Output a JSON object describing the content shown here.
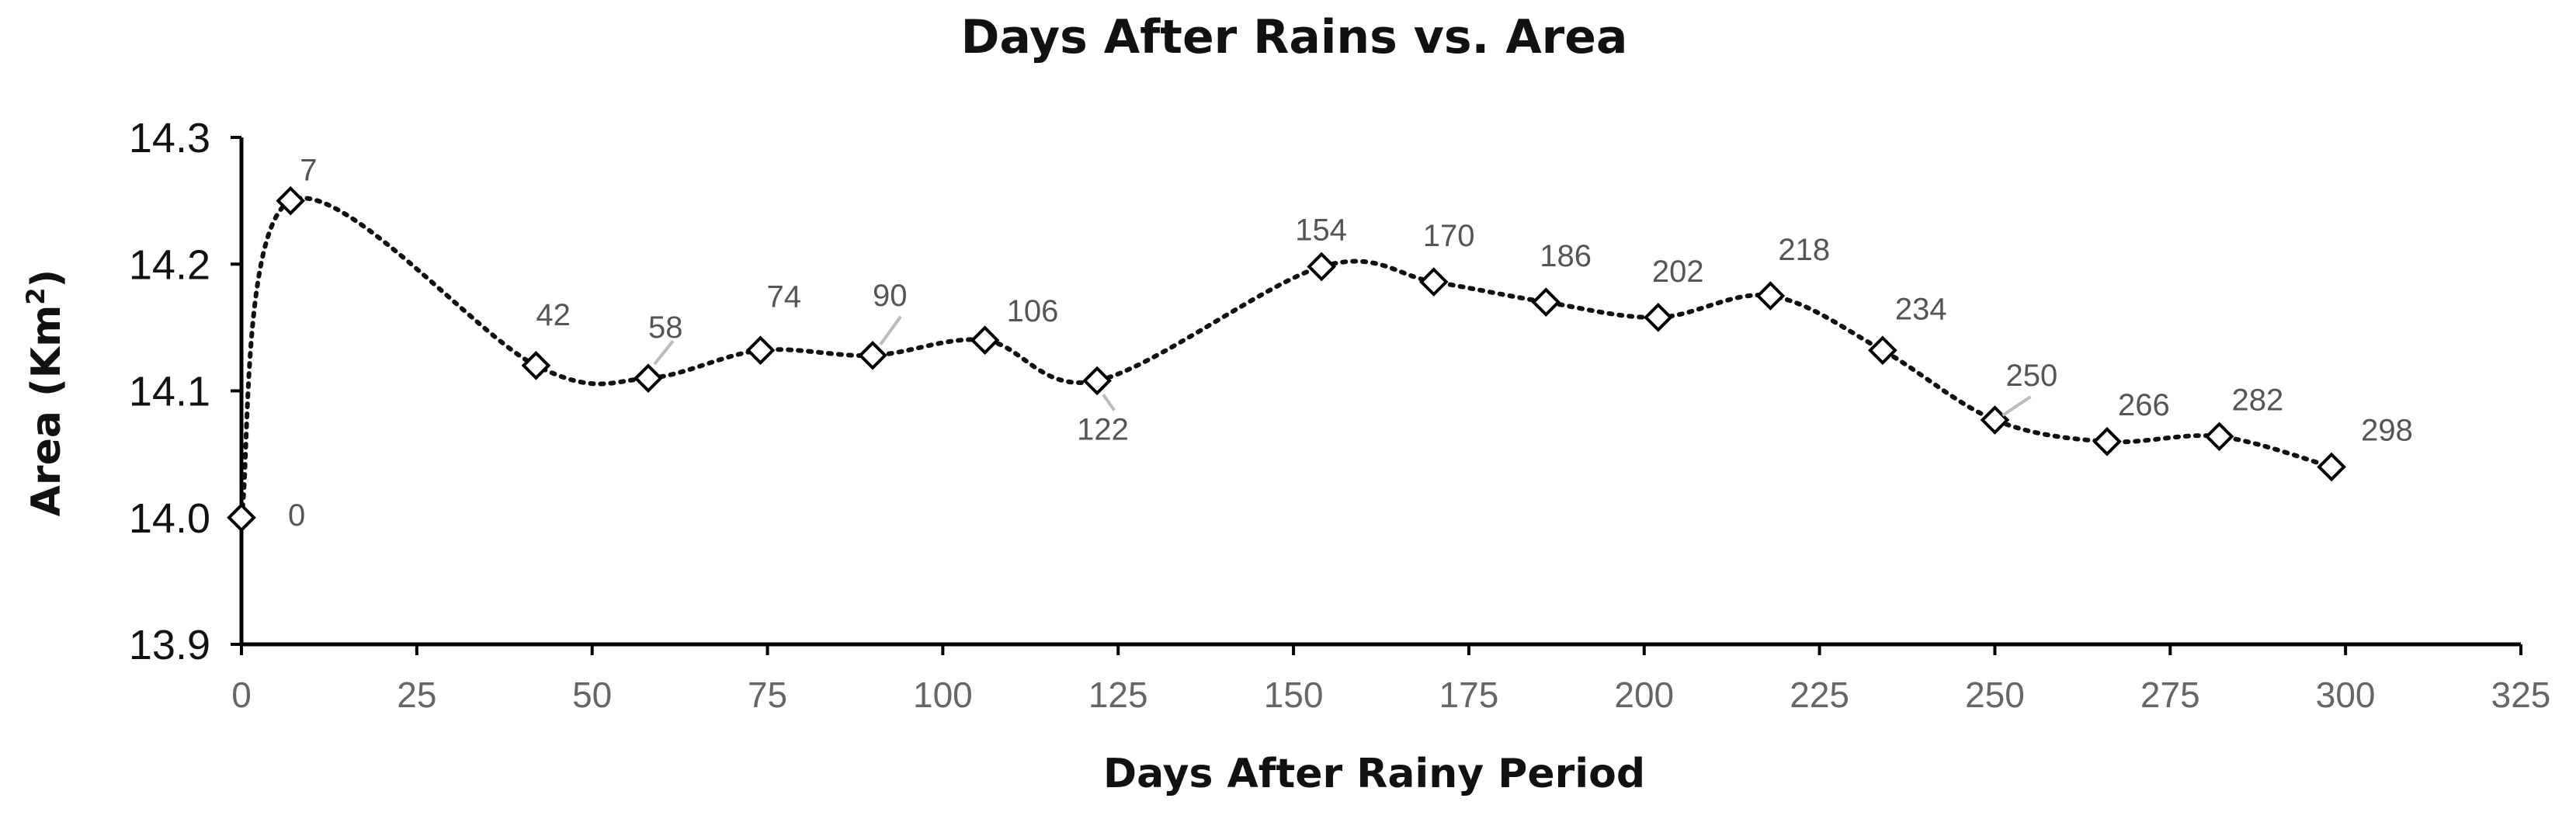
{
  "chart_data": {
    "type": "scatter",
    "title": "Days After Rains vs. Area",
    "xlabel": "Days After Rainy Period",
    "ylabel": "Area (Km",
    "ylabel_superscript": "2",
    "ylabel_close": ")",
    "xlim": [
      0,
      325
    ],
    "ylim": [
      13.9,
      14.3
    ],
    "xticks": [
      0,
      25,
      50,
      75,
      100,
      125,
      150,
      175,
      200,
      225,
      250,
      275,
      300,
      325
    ],
    "xtick_labels": [
      "0",
      "25",
      "50",
      "75",
      "100",
      "125",
      "150",
      "175",
      "200",
      "225",
      "250",
      "275",
      "300",
      "325"
    ],
    "yticks": [
      13.9,
      14.0,
      14.1,
      14.2,
      14.3
    ],
    "ytick_labels": [
      "13.9",
      "14.0",
      "14.1",
      "14.2",
      "14.3"
    ],
    "grid": false,
    "line_style": "dotted smoothed",
    "marker": "diamond",
    "series": [
      {
        "name": "Area",
        "x": [
          0,
          7,
          42,
          58,
          74,
          90,
          106,
          122,
          154,
          170,
          186,
          202,
          218,
          234,
          250,
          266,
          282,
          298
        ],
        "y": [
          14.0,
          14.25,
          14.12,
          14.11,
          14.132,
          14.128,
          14.14,
          14.108,
          14.198,
          14.186,
          14.17,
          14.158,
          14.175,
          14.132,
          14.077,
          14.06,
          14.064,
          14.04
        ],
        "point_labels": [
          "0",
          "7",
          "42",
          "58",
          "74",
          "90",
          "106",
          "122",
          "154",
          "170",
          "186",
          "202",
          "218",
          "234",
          "250",
          "266",
          "282",
          "298"
        ]
      }
    ]
  }
}
